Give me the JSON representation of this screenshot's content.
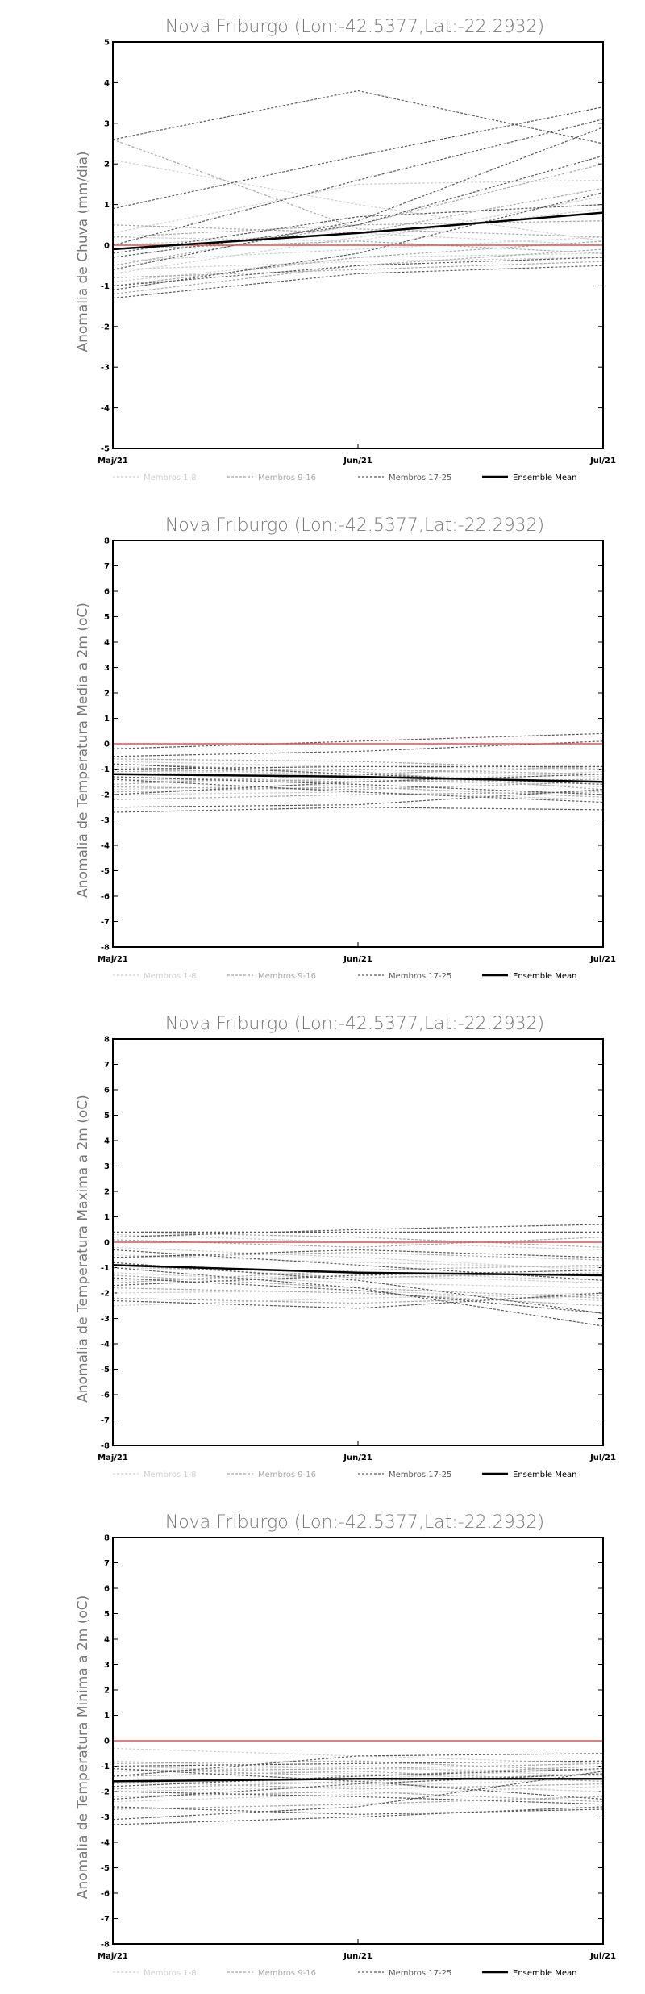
{
  "chart_data": [
    {
      "type": "line",
      "title": "Nova Friburgo (Lon:-42.5377,Lat:-22.2932)",
      "ylabel": "Anomalia de Chuva (mm/dia)",
      "categories": [
        "Maj/21",
        "Jun/21",
        "Jul/21"
      ],
      "ylim": [
        -5,
        5
      ],
      "yticks": [
        -5,
        -4,
        -3,
        -2,
        -1,
        0,
        1,
        2,
        3,
        4,
        5
      ],
      "legend": [
        "Membros 1-8",
        "Membros 9-16",
        "Membros 17-25",
        "Ensemble Mean"
      ],
      "zero_line_color": "#e05050",
      "series_groups": [
        {
          "name": "Membros 1-8",
          "color": "#cfcfcf",
          "values": [
            [
              2.1,
              1.0,
              0.1
            ],
            [
              0.3,
              1.5,
              1.6
            ],
            [
              -0.7,
              0.2,
              0.9
            ],
            [
              0.0,
              0.3,
              0.0
            ],
            [
              -0.4,
              -0.1,
              0.2
            ],
            [
              -0.9,
              -0.3,
              -0.2
            ],
            [
              0.2,
              0.1,
              1.2
            ],
            [
              -0.6,
              -0.4,
              -0.3
            ]
          ]
        },
        {
          "name": "Membros 9-16",
          "color": "#a8a8a8",
          "values": [
            [
              2.6,
              0.4,
              0.2
            ],
            [
              0.2,
              0.5,
              2.0
            ],
            [
              -1.2,
              -0.5,
              -0.1
            ],
            [
              -0.5,
              0.5,
              0.6
            ],
            [
              -0.1,
              0.1,
              -0.2
            ],
            [
              -0.8,
              -0.6,
              -0.4
            ],
            [
              0.5,
              0.3,
              1.4
            ],
            [
              -1.0,
              -0.3,
              0.1
            ]
          ]
        },
        {
          "name": "Membros 17-25",
          "color": "#5a5a5a",
          "values": [
            [
              2.6,
              3.8,
              2.5
            ],
            [
              0.9,
              2.2,
              3.4
            ],
            [
              0.0,
              1.6,
              3.1
            ],
            [
              -0.6,
              0.6,
              2.9
            ],
            [
              -0.3,
              0.5,
              2.2
            ],
            [
              -1.1,
              -0.2,
              1.3
            ],
            [
              -1.3,
              -0.7,
              -0.5
            ],
            [
              -1.0,
              -0.5,
              -0.3
            ],
            [
              -0.2,
              0.7,
              1.0
            ]
          ]
        }
      ],
      "ensemble_mean": [
        -0.1,
        0.3,
        0.8
      ]
    },
    {
      "type": "line",
      "title": "Nova Friburgo (Lon:-42.5377,Lat:-22.2932)",
      "ylabel": "Anomalia de Temperatura Media a 2m (oC)",
      "categories": [
        "Maj/21",
        "Jun/21",
        "Jul/21"
      ],
      "ylim": [
        -8,
        8
      ],
      "yticks": [
        -8,
        -7,
        -6,
        -5,
        -4,
        -3,
        -2,
        -1,
        0,
        1,
        2,
        3,
        4,
        5,
        6,
        7,
        8
      ],
      "legend": [
        "Membros 1-8",
        "Membros 9-16",
        "Membros 17-25",
        "Ensemble Mean"
      ],
      "zero_line_color": "#e05050",
      "series_groups": [
        {
          "name": "Membros 1-8",
          "color": "#cfcfcf",
          "values": [
            [
              -1.0,
              -1.2,
              -1.5
            ],
            [
              -1.5,
              -1.4,
              -1.7
            ],
            [
              -0.7,
              -0.9,
              -1.0
            ],
            [
              -1.8,
              -1.6,
              -2.0
            ],
            [
              -1.2,
              -1.0,
              -1.3
            ],
            [
              -2.0,
              -1.9,
              -2.2
            ],
            [
              -0.9,
              -1.3,
              -1.6
            ],
            [
              -1.4,
              -1.5,
              -1.1
            ]
          ]
        },
        {
          "name": "Membros 9-16",
          "color": "#a8a8a8",
          "values": [
            [
              -1.1,
              -1.0,
              -1.2
            ],
            [
              -1.7,
              -1.8,
              -1.5
            ],
            [
              -0.8,
              -1.1,
              -1.8
            ],
            [
              -2.2,
              -2.0,
              -1.9
            ],
            [
              -1.3,
              -1.5,
              -1.4
            ],
            [
              -1.6,
              -1.2,
              -0.9
            ],
            [
              -0.6,
              -0.7,
              -1.0
            ],
            [
              -1.9,
              -1.7,
              -2.1
            ]
          ]
        },
        {
          "name": "Membros 17-25",
          "color": "#5a5a5a",
          "values": [
            [
              -0.2,
              0.1,
              0.4
            ],
            [
              -2.5,
              -2.4,
              -1.8
            ],
            [
              -2.7,
              -2.5,
              -2.6
            ],
            [
              -0.5,
              -0.3,
              0.1
            ],
            [
              -1.3,
              -1.6,
              -2.0
            ],
            [
              -0.8,
              -1.2,
              -1.6
            ],
            [
              -1.0,
              -0.9,
              -0.9
            ],
            [
              -2.0,
              -1.5,
              -1.2
            ],
            [
              -1.4,
              -1.9,
              -2.3
            ]
          ]
        }
      ],
      "ensemble_mean": [
        -1.2,
        -1.3,
        -1.5
      ]
    },
    {
      "type": "line",
      "title": "Nova Friburgo (Lon:-42.5377,Lat:-22.2932)",
      "ylabel": "Anomalia de Temperatura Maxima a 2m (oC)",
      "categories": [
        "Maj/21",
        "Jun/21",
        "Jul/21"
      ],
      "ylim": [
        -8,
        8
      ],
      "yticks": [
        -8,
        -7,
        -6,
        -5,
        -4,
        -3,
        -2,
        -1,
        0,
        1,
        2,
        3,
        4,
        5,
        6,
        7,
        8
      ],
      "legend": [
        "Membros 1-8",
        "Membros 9-16",
        "Membros 17-25",
        "Ensemble Mean"
      ],
      "zero_line_color": "#e05050",
      "series_groups": [
        {
          "name": "Membros 1-8",
          "color": "#cfcfcf",
          "values": [
            [
              -0.5,
              -0.8,
              -1.0
            ],
            [
              0.3,
              0.0,
              -0.3
            ],
            [
              -1.5,
              -1.3,
              -1.6
            ],
            [
              -2.0,
              -1.9,
              -2.3
            ],
            [
              -1.0,
              -1.2,
              -1.5
            ],
            [
              -0.2,
              -0.6,
              -1.1
            ],
            [
              -2.5,
              -2.2,
              -2.0
            ],
            [
              -1.2,
              -1.6,
              -1.8
            ]
          ]
        },
        {
          "name": "Membros 9-16",
          "color": "#a8a8a8",
          "values": [
            [
              0.1,
              -0.2,
              0.2
            ],
            [
              -0.9,
              -1.4,
              -1.2
            ],
            [
              -1.8,
              -2.0,
              -2.5
            ],
            [
              -0.6,
              -0.4,
              -0.7
            ],
            [
              -1.6,
              -1.1,
              -0.9
            ],
            [
              -2.2,
              -2.4,
              -2.1
            ],
            [
              0.4,
              0.2,
              -0.2
            ],
            [
              -1.3,
              -1.8,
              -2.2
            ]
          ]
        },
        {
          "name": "Membros 17-25",
          "color": "#5a5a5a",
          "values": [
            [
              0.2,
              0.5,
              0.7
            ],
            [
              0.4,
              0.4,
              0.4
            ],
            [
              -0.8,
              -1.5,
              -2.8
            ],
            [
              -1.0,
              -1.8,
              -3.3
            ],
            [
              -2.3,
              -2.6,
              -2.0
            ],
            [
              -0.3,
              -0.9,
              -1.5
            ],
            [
              -1.4,
              -1.9,
              -2.8
            ],
            [
              -0.6,
              -0.3,
              -0.6
            ],
            [
              -1.7,
              -1.3,
              -1.1
            ]
          ]
        }
      ],
      "ensemble_mean": [
        -0.9,
        -1.2,
        -1.3
      ]
    },
    {
      "type": "line",
      "title": "Nova Friburgo (Lon:-42.5377,Lat:-22.2932)",
      "ylabel": "Anomalia de Temperatura Minima a 2m (oC)",
      "categories": [
        "Maj/21",
        "Jun/21",
        "Jul/21"
      ],
      "ylim": [
        -8,
        8
      ],
      "yticks": [
        -8,
        -7,
        -6,
        -5,
        -4,
        -3,
        -2,
        -1,
        0,
        1,
        2,
        3,
        4,
        5,
        6,
        7,
        8
      ],
      "legend": [
        "Membros 1-8",
        "Membros 9-16",
        "Membros 17-25",
        "Ensemble Mean"
      ],
      "zero_line_color": "#e05050",
      "series_groups": [
        {
          "name": "Membros 1-8",
          "color": "#cfcfcf",
          "values": [
            [
              -0.3,
              -0.6,
              -0.9
            ],
            [
              -1.2,
              -1.0,
              -1.4
            ],
            [
              -2.0,
              -1.8,
              -1.5
            ],
            [
              -1.5,
              -1.7,
              -2.0
            ],
            [
              -0.8,
              -1.1,
              -1.2
            ],
            [
              -2.4,
              -2.1,
              -1.8
            ],
            [
              -1.0,
              -1.3,
              -1.6
            ],
            [
              -1.7,
              -1.5,
              -1.1
            ]
          ]
        },
        {
          "name": "Membros 9-16",
          "color": "#a8a8a8",
          "values": [
            [
              -1.1,
              -1.4,
              -1.0
            ],
            [
              -1.9,
              -1.6,
              -1.3
            ],
            [
              -0.9,
              -0.8,
              -1.2
            ],
            [
              -2.2,
              -2.0,
              -2.4
            ],
            [
              -1.4,
              -1.2,
              -1.6
            ],
            [
              -2.7,
              -2.5,
              -2.2
            ],
            [
              -1.6,
              -1.9,
              -1.7
            ],
            [
              -1.2,
              -1.1,
              -0.9
            ]
          ]
        },
        {
          "name": "Membros 17-25",
          "color": "#5a5a5a",
          "values": [
            [
              -3.3,
              -3.0,
              -2.6
            ],
            [
              -3.1,
              -2.6,
              -1.2
            ],
            [
              -2.0,
              -2.2,
              -2.5
            ],
            [
              -1.0,
              -0.9,
              -0.8
            ],
            [
              -1.8,
              -1.4,
              -1.1
            ],
            [
              -2.6,
              -2.9,
              -2.7
            ],
            [
              -1.4,
              -0.6,
              -0.5
            ],
            [
              -2.3,
              -1.7,
              -1.3
            ],
            [
              -1.1,
              -1.6,
              -2.3
            ]
          ]
        }
      ],
      "ensemble_mean": [
        -1.6,
        -1.5,
        -1.5
      ]
    }
  ]
}
